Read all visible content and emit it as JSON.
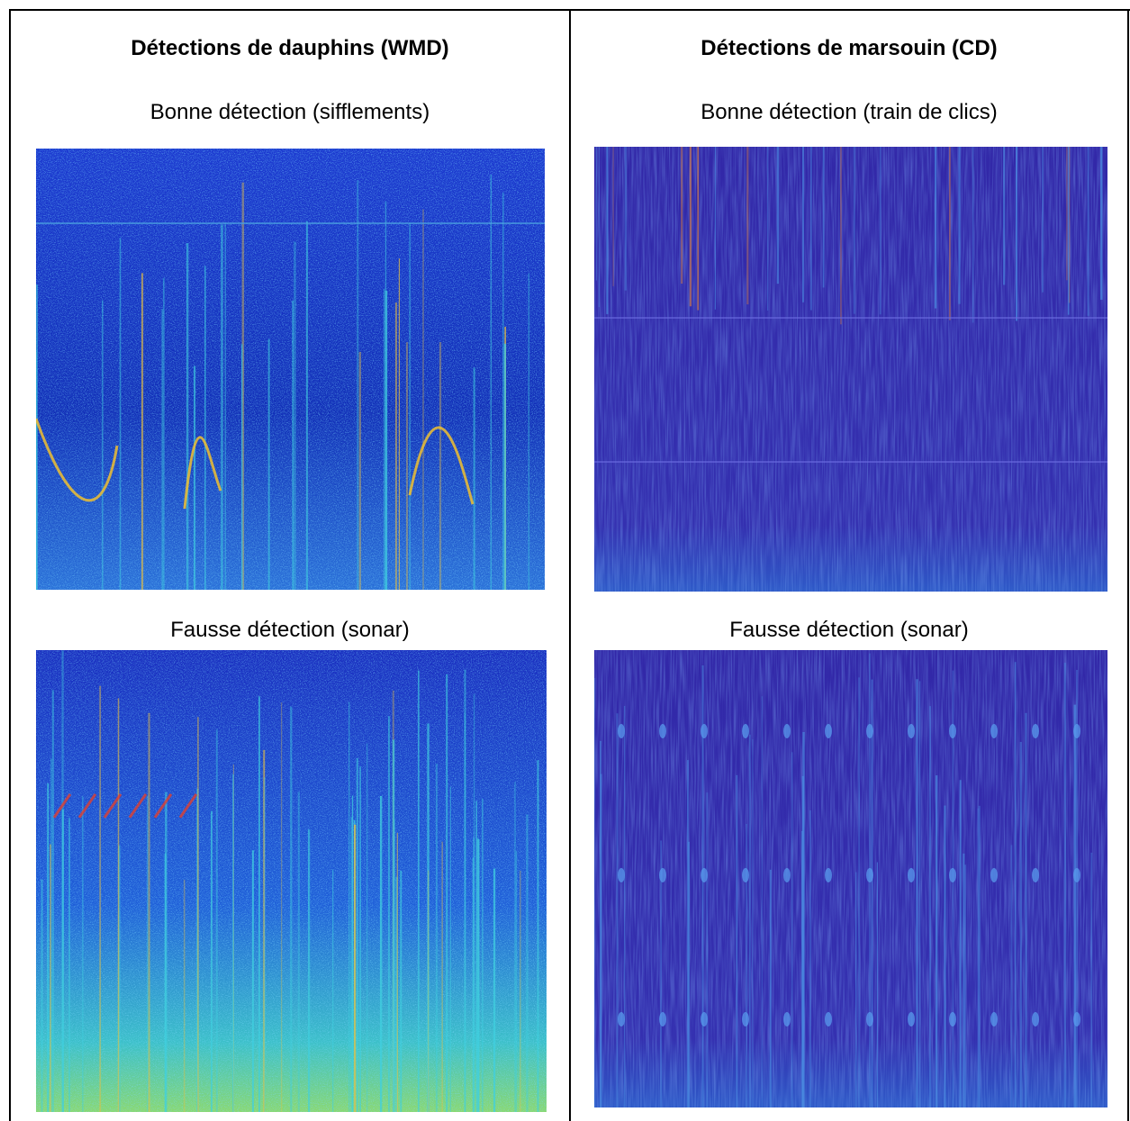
{
  "table": {
    "headers": [
      "Détections de dauphins (WMD)",
      "Détections de marsouin (CD)"
    ],
    "rows": [
      [
        "Bonne détection (sifflements)",
        "Bonne détection (train de clics)"
      ],
      [
        "Fausse détection (sonar)",
        "Fausse détection (sonar)"
      ]
    ]
  }
}
